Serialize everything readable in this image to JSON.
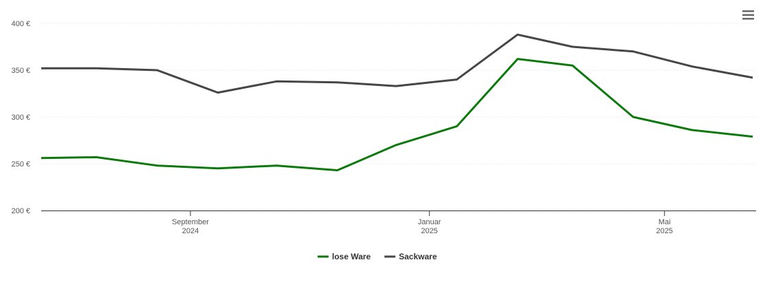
{
  "chart_data": {
    "type": "line",
    "x": [
      "2024-06",
      "2024-07",
      "2024-08",
      "2024-09",
      "2024-10",
      "2024-11",
      "2024-12",
      "2025-01",
      "2025-02",
      "2025-03",
      "2025-04",
      "2025-05",
      "2025-06"
    ],
    "series": [
      {
        "name": "lose Ware",
        "color": "#0b7a0b",
        "values": [
          256,
          257,
          248,
          245,
          248,
          243,
          270,
          290,
          362,
          355,
          300,
          286,
          279
        ]
      },
      {
        "name": "Sackware",
        "color": "#464646",
        "values": [
          352,
          352,
          350,
          326,
          338,
          337,
          333,
          340,
          388,
          375,
          370,
          354,
          342
        ]
      }
    ],
    "ylim": [
      200,
      400
    ],
    "yticks": [
      {
        "value": 200,
        "label": "200 €"
      },
      {
        "value": 250,
        "label": "250 €"
      },
      {
        "value": 300,
        "label": "300 €"
      },
      {
        "value": 350,
        "label": "350 €"
      },
      {
        "value": 400,
        "label": "400 €"
      }
    ],
    "xticks": [
      {
        "value": "2024-09",
        "label": "September 2024"
      },
      {
        "value": "2025-01",
        "label": "Januar 2025"
      },
      {
        "value": "2025-05",
        "label": "Mai 2025"
      }
    ],
    "grid": true,
    "legend": "bottom"
  }
}
